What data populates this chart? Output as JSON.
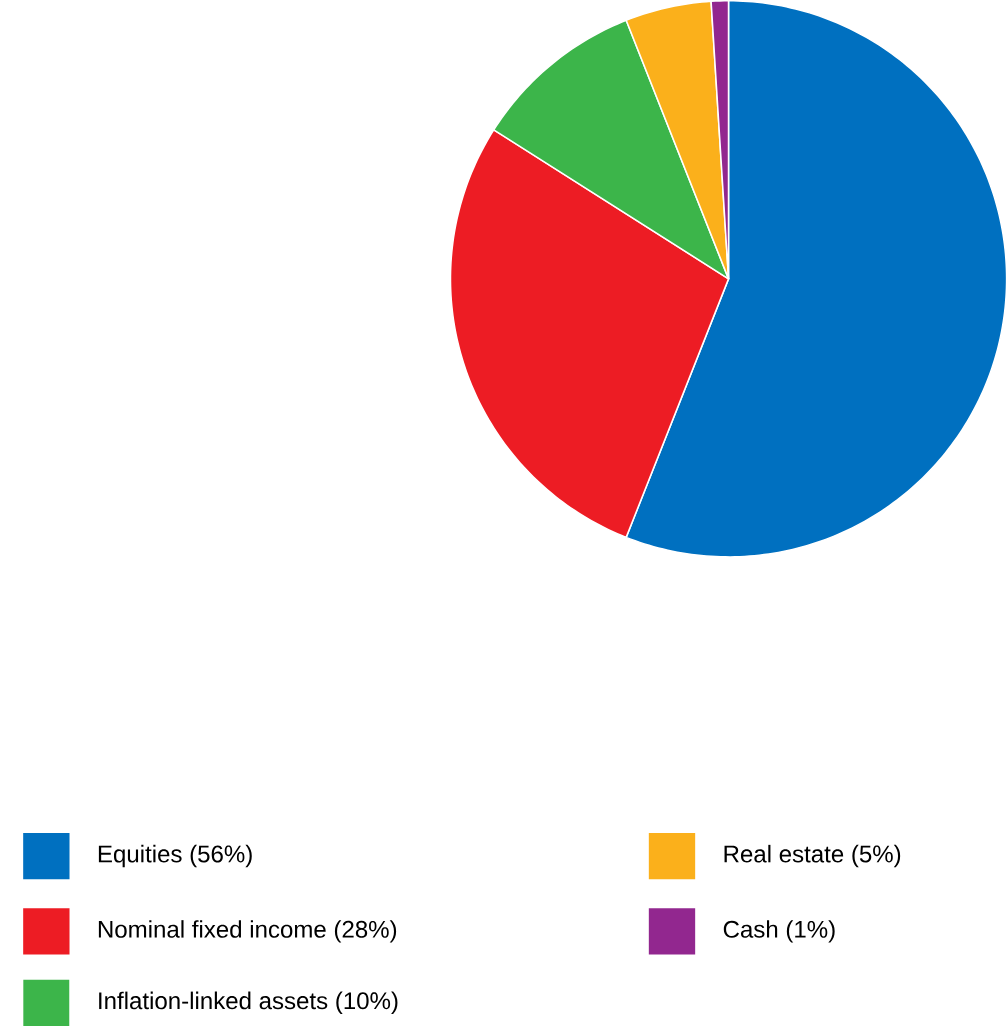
{
  "chart_data": {
    "type": "pie",
    "categories": [
      "Equities (56%)",
      "Nominal fixed income (28%)",
      "Inflation-linked assets (10%)",
      "Real estate (5%)",
      "Cash (1%)"
    ],
    "values": [
      56,
      28,
      10,
      5,
      1
    ],
    "colors": [
      "#0070c0",
      "#ed1c24",
      "#3cb54a",
      "#fbb01b",
      "#92278f"
    ],
    "legend": "bottom"
  }
}
